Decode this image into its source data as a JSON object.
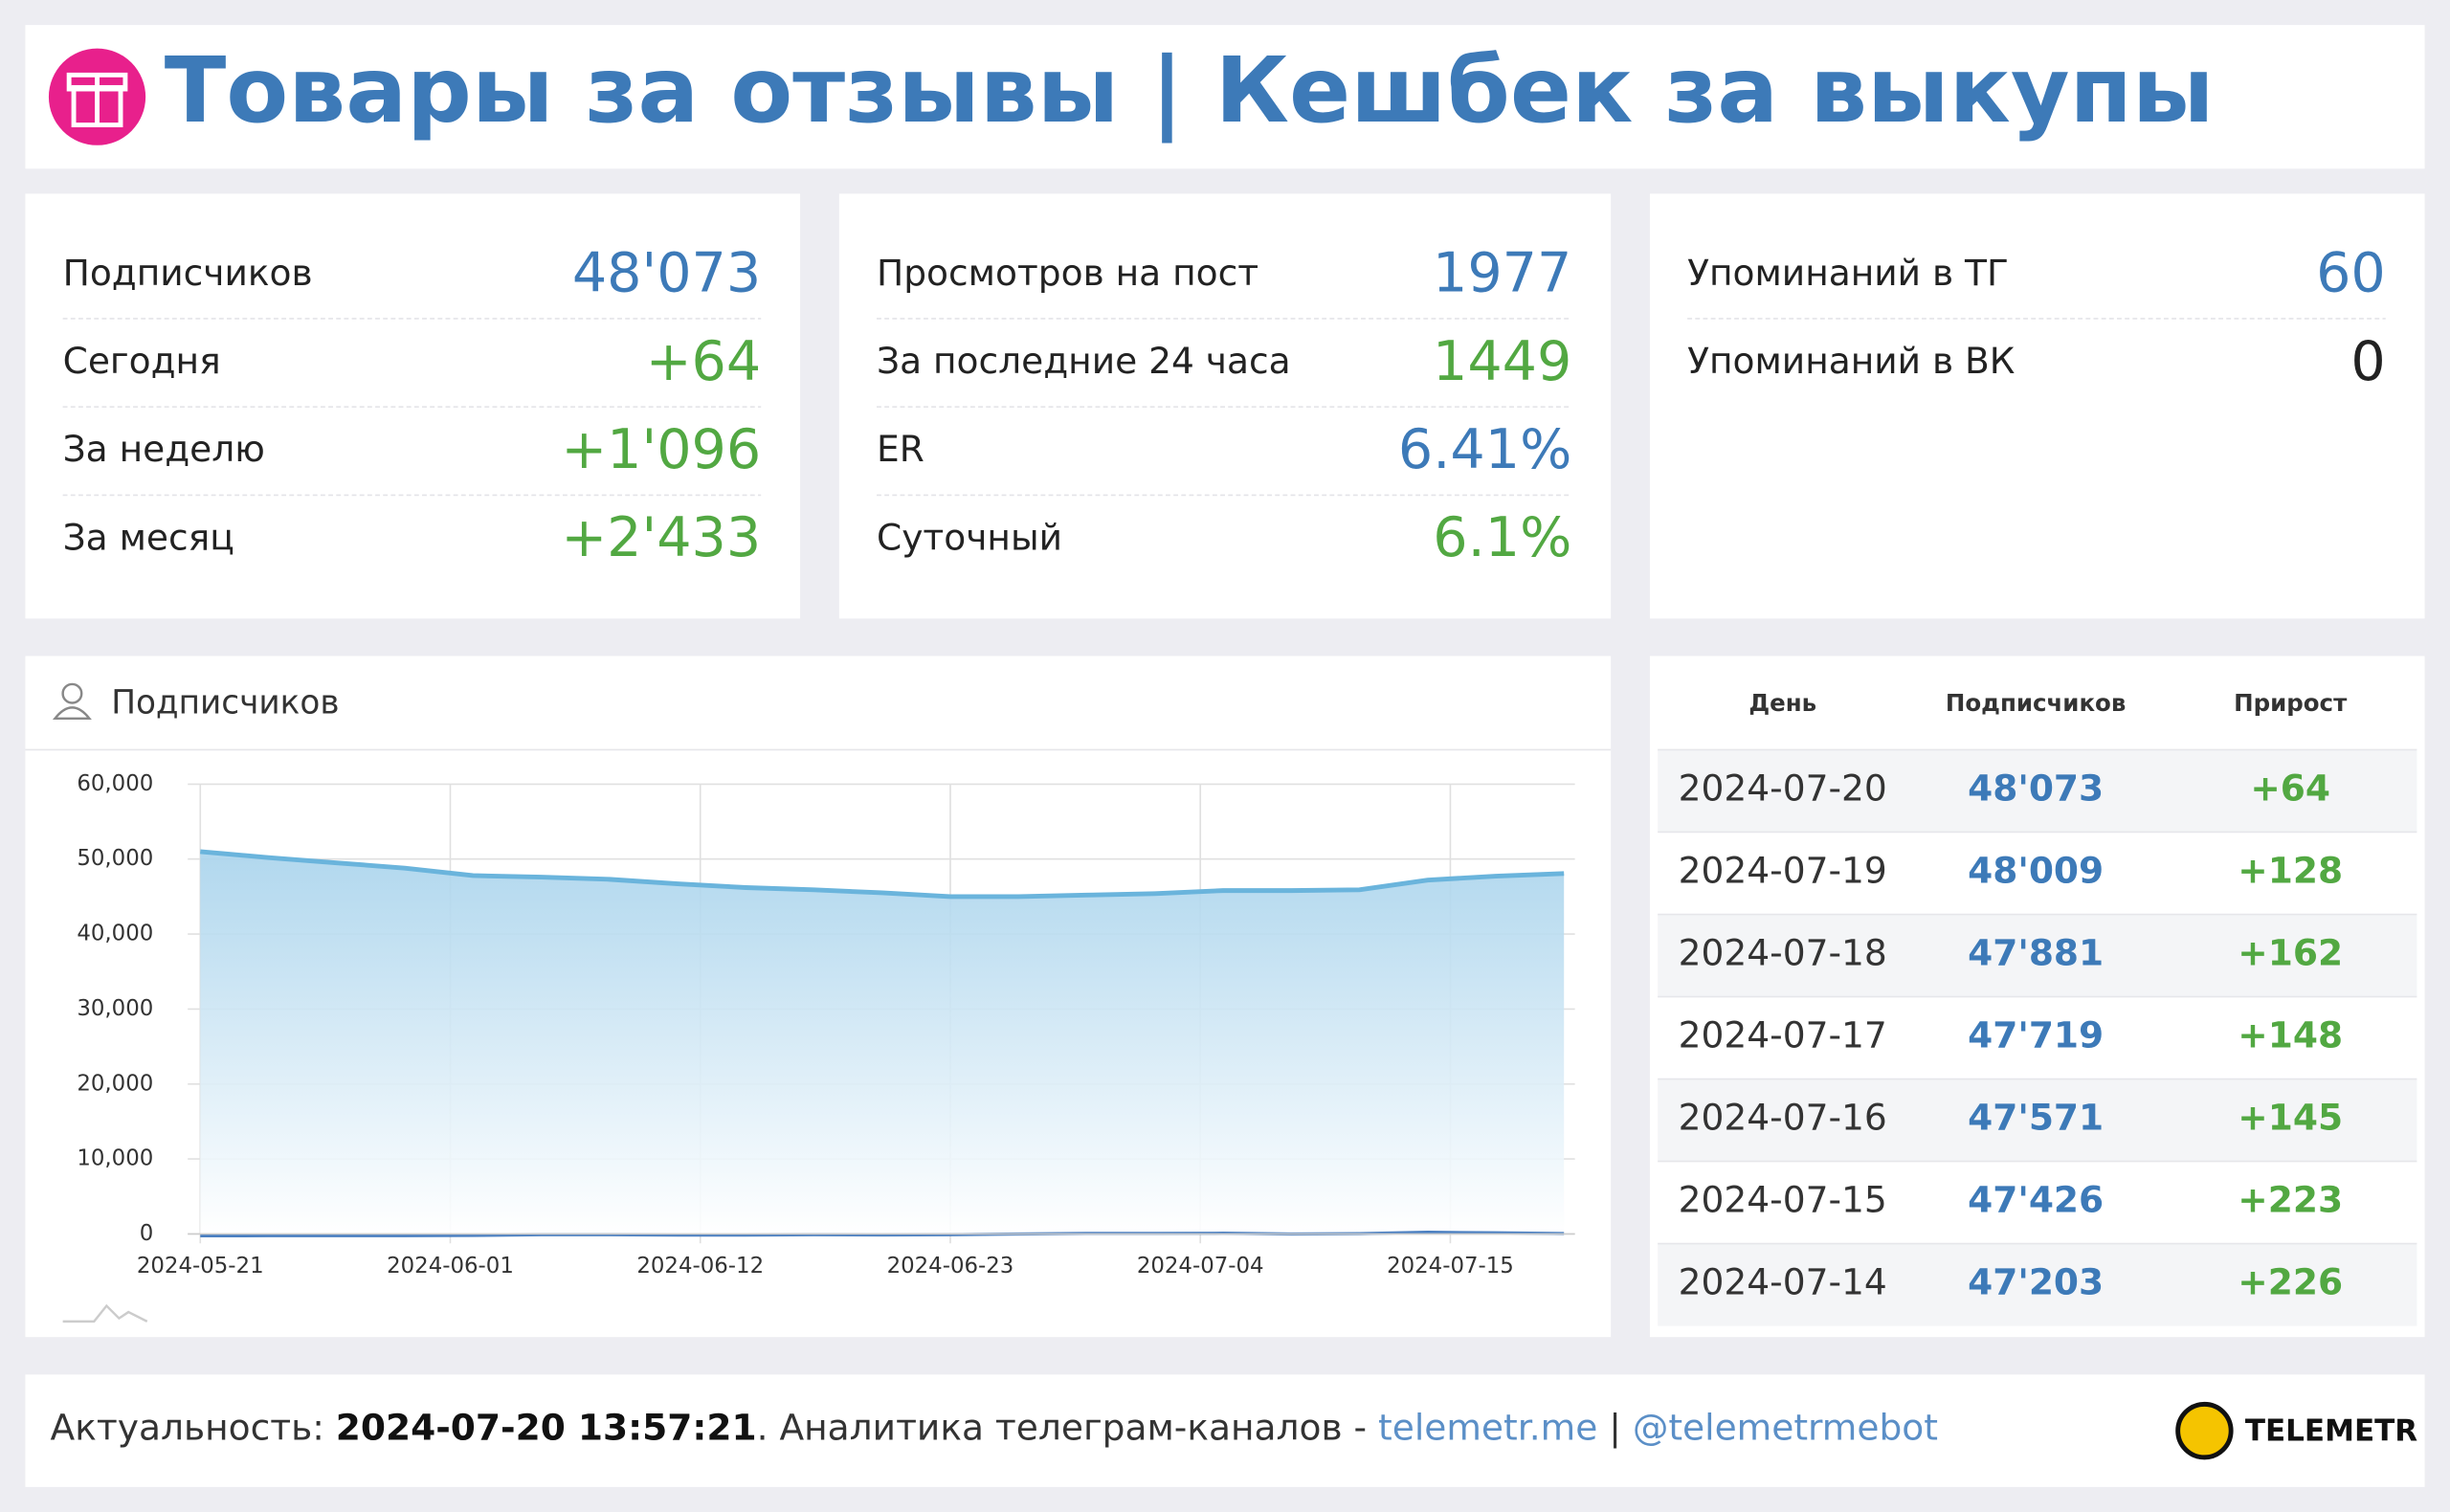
{
  "header": {
    "title": "Товары за отзывы | Кешбек за выкупы"
  },
  "cards": [
    {
      "rows": [
        {
          "label": "Подписчиков",
          "value": "48'073",
          "color": "#3d7ab8"
        },
        {
          "label": "Сегодня",
          "value": "+64",
          "color": "#52a842"
        },
        {
          "label": "За неделю",
          "value": "+1'096",
          "color": "#52a842"
        },
        {
          "label": "За месяц",
          "value": "+2'433",
          "color": "#52a842"
        }
      ]
    },
    {
      "rows": [
        {
          "label": "Просмотров на пост",
          "value": "1977",
          "color": "#3d7ab8"
        },
        {
          "label": "За последние 24 часа",
          "value": "1449",
          "color": "#52a842"
        },
        {
          "label": "ER",
          "value": "6.41%",
          "color": "#3d7ab8"
        },
        {
          "label": "Суточный",
          "value": "6.1%",
          "color": "#52a842"
        }
      ]
    },
    {
      "rows": [
        {
          "label": "Упоминаний в ТГ",
          "value": "60",
          "color": "#3d7ab8"
        },
        {
          "label": "Упоминаний в ВК",
          "value": "0",
          "color": "#222222"
        }
      ]
    }
  ],
  "chart": {
    "type": "area",
    "title": "Подписчиков",
    "x": [
      "2024-05-21",
      "2024-05-24",
      "2024-05-27",
      "2024-05-30",
      "2024-06-02",
      "2024-06-05",
      "2024-06-08",
      "2024-06-11",
      "2024-06-14",
      "2024-06-17",
      "2024-06-20",
      "2024-06-23",
      "2024-06-26",
      "2024-06-29",
      "2024-07-02",
      "2024-07-05",
      "2024-07-08",
      "2024-07-11",
      "2024-07-14",
      "2024-07-17",
      "2024-07-20"
    ],
    "series": [
      {
        "color": "#6ab4dc",
        "values": [
          51000,
          50200,
          49500,
          48800,
          47800,
          47600,
          47300,
          46700,
          46200,
          45900,
          45500,
          45000,
          45000,
          45200,
          45400,
          45800,
          45800,
          45900,
          47203,
          47719,
          48073
        ]
      },
      {
        "color": "#4a7fc1",
        "values": [
          -250,
          -230,
          -230,
          -230,
          -200,
          -100,
          -100,
          -150,
          -150,
          -100,
          -130,
          -100,
          0,
          70,
          70,
          100,
          0,
          40,
          226,
          148,
          64
        ]
      }
    ],
    "xlim": [
      "2024-05-21",
      "2024-07-20"
    ],
    "xticks": [
      "2024-05-21",
      "2024-06-01",
      "2024-06-12",
      "2024-06-23",
      "2024-07-04",
      "2024-07-15"
    ],
    "ylim": [
      0,
      60000
    ],
    "yticks": [
      0,
      {
        "value": 10000,
        "label": "10,000"
      },
      {
        "value": 20000,
        "label": "20,000"
      },
      {
        "value": 30000,
        "label": "30,000"
      },
      {
        "value": 40000,
        "label": "40,000"
      },
      {
        "value": 50000,
        "label": "50,000"
      },
      {
        "value": 60000,
        "label": "60,000"
      }
    ],
    "grid": true
  },
  "table": {
    "columns": [
      "День",
      "Подписчиков",
      "Прирост"
    ],
    "rows": [
      [
        "2024-07-20",
        "48'073",
        "+64"
      ],
      [
        "2024-07-19",
        "48'009",
        "+128"
      ],
      [
        "2024-07-18",
        "47'881",
        "+162"
      ],
      [
        "2024-07-17",
        "47'719",
        "+148"
      ],
      [
        "2024-07-16",
        "47'571",
        "+145"
      ],
      [
        "2024-07-15",
        "47'426",
        "+223"
      ],
      [
        "2024-07-14",
        "47'203",
        "+226"
      ]
    ]
  },
  "footer": {
    "prefix": "Актуальность: ",
    "timestamp": "2024-07-20 13:57:21",
    "middle": ". Аналитика телеграм-каналов - ",
    "link1": "telemetr.me",
    "separator": " | ",
    "link2": "@telemetrmebot",
    "brand": "TELEMETR"
  }
}
